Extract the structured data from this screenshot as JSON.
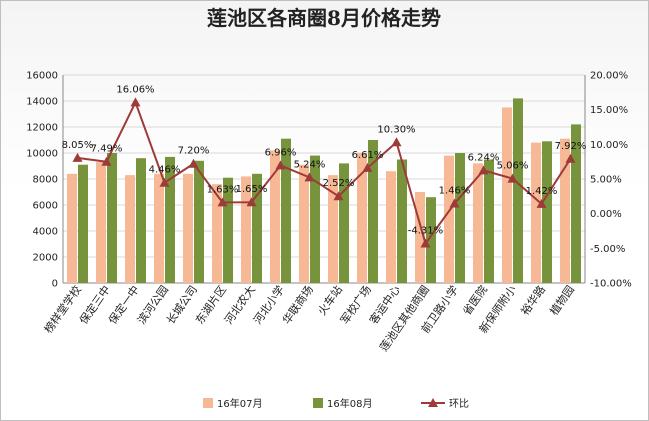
{
  "chart_data": {
    "type": "bar",
    "title": "莲池区各商圈8月价格走势",
    "categories": [
      "榜样堂学校",
      "保定三中",
      "保定一中",
      "滨河公园",
      "长城公司",
      "东湖片区",
      "河北农大",
      "河北小学",
      "华联商场",
      "火车站",
      "军校广场",
      "客运中心",
      "莲池区其他商圈",
      "前卫路小学",
      "省医院",
      "新保师附小",
      "裕华路",
      "植物园"
    ],
    "series": [
      {
        "name": "16年07月",
        "type": "bar",
        "axis": "left",
        "color": "#f7b896",
        "values": [
          8400,
          9300,
          8300,
          8400,
          8400,
          7600,
          8200,
          10200,
          9100,
          8300,
          10000,
          8600,
          7000,
          9800,
          9200,
          13500,
          10800,
          11100
        ]
      },
      {
        "name": "16年08月",
        "type": "bar",
        "axis": "left",
        "color": "#77933c",
        "values": [
          9100,
          10000,
          9600,
          9700,
          9400,
          8100,
          8400,
          11100,
          9800,
          9200,
          11000,
          9500,
          6600,
          10000,
          9500,
          14200,
          10900,
          12200
        ]
      },
      {
        "name": "环比",
        "type": "line",
        "axis": "right",
        "color": "#9e3a38",
        "unit": "%",
        "values": [
          8.05,
          7.49,
          16.06,
          4.46,
          7.2,
          1.63,
          1.65,
          6.96,
          5.24,
          2.52,
          6.61,
          10.3,
          -4.31,
          1.46,
          6.24,
          5.06,
          1.42,
          7.92
        ]
      }
    ],
    "data_labels": [
      "8.05%",
      "7.49%",
      "16.06%",
      "4.46%",
      "7.20%",
      "1.63%",
      "1.65%",
      "6.96%",
      "5.24%",
      "2.52%",
      "6.61%",
      "10.30%",
      "-4.31%",
      "1.46%",
      "6.24%",
      "5.06%",
      "1.42%",
      "7.92%"
    ],
    "y_left": {
      "min": 0,
      "max": 16000,
      "ticks": [
        "0",
        "2000",
        "4000",
        "6000",
        "8000",
        "10000",
        "12000",
        "14000",
        "16000"
      ]
    },
    "y_right": {
      "min": -10,
      "max": 20,
      "ticks": [
        "-10.00%",
        "-5.00%",
        "0.00%",
        "5.00%",
        "10.00%",
        "15.00%",
        "20.00%"
      ]
    },
    "grid": true,
    "legend_position": "bottom"
  }
}
